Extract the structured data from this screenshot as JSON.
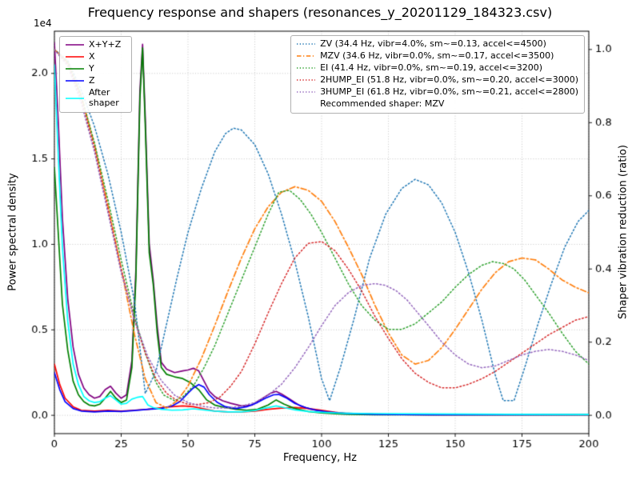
{
  "chart_data": {
    "type": "line",
    "title": "Frequency response and shapers (resonances_y_20201129_184323.csv)",
    "xlabel": "Frequency, Hz",
    "ylabel_left": "Power spectral density",
    "ylabel_right": "Shaper vibration reduction (ratio)",
    "offset_text": "1e4",
    "psd_values_scale": "1e4",
    "xlim": [
      0,
      200
    ],
    "ylim_left": [
      -0.107,
      2.247
    ],
    "ylim_right": [
      -0.05,
      1.05
    ],
    "xticks": [
      0,
      25,
      50,
      75,
      100,
      125,
      150,
      175,
      200
    ],
    "yticks_left": [
      "0.0",
      "0.5",
      "1.0",
      "1.5",
      "2.0"
    ],
    "yticks_right": [
      "0.0",
      "0.2",
      "0.4",
      "0.6",
      "0.8",
      "1.0"
    ],
    "grid": true,
    "grid_color": "#b8b8b8",
    "psd_series": [
      {
        "name": "X+Y+Z",
        "color": "#800080",
        "style": "solid",
        "axis": "left",
        "x": [
          0,
          1.5,
          3,
          5,
          7,
          9,
          11,
          13,
          15,
          17,
          19,
          21,
          23,
          25,
          27,
          29,
          30.5,
          32,
          33,
          34,
          35.5,
          37,
          38.5,
          40,
          42,
          45,
          48,
          50,
          52,
          54,
          56,
          58,
          60,
          63,
          66,
          70,
          74,
          78,
          81,
          83,
          85,
          88,
          92,
          96,
          100,
          104,
          108,
          114,
          120,
          130,
          145,
          165,
          185,
          200
        ],
        "y": [
          2.18,
          1.7,
          1.15,
          0.68,
          0.4,
          0.24,
          0.16,
          0.12,
          0.1,
          0.11,
          0.15,
          0.17,
          0.13,
          0.1,
          0.12,
          0.32,
          0.85,
          1.9,
          2.17,
          1.75,
          1.0,
          0.79,
          0.52,
          0.31,
          0.27,
          0.25,
          0.26,
          0.265,
          0.275,
          0.26,
          0.2,
          0.14,
          0.11,
          0.085,
          0.07,
          0.055,
          0.06,
          0.1,
          0.13,
          0.14,
          0.125,
          0.095,
          0.055,
          0.035,
          0.025,
          0.018,
          0.013,
          0.009,
          0.007,
          0.005,
          0.004,
          0.004,
          0.004,
          0.004
        ]
      },
      {
        "name": "X",
        "color": "#ff0000",
        "style": "solid",
        "axis": "left",
        "x": [
          0,
          2,
          4,
          7,
          10,
          15,
          20,
          25,
          30,
          35,
          40,
          44,
          48,
          52,
          56,
          60,
          65,
          70,
          75,
          80,
          85,
          90,
          95,
          100,
          105,
          110,
          120,
          140,
          170,
          200
        ],
        "y": [
          0.3,
          0.18,
          0.1,
          0.05,
          0.03,
          0.025,
          0.03,
          0.025,
          0.03,
          0.035,
          0.045,
          0.05,
          0.055,
          0.05,
          0.038,
          0.025,
          0.02,
          0.02,
          0.025,
          0.035,
          0.042,
          0.046,
          0.04,
          0.03,
          0.018,
          0.01,
          0.006,
          0.004,
          0.003,
          0.003
        ]
      },
      {
        "name": "Y",
        "color": "#008000",
        "style": "solid",
        "axis": "left",
        "x": [
          0,
          1.5,
          3,
          5,
          7,
          9,
          11,
          13,
          15,
          17,
          19,
          21,
          23,
          25,
          27,
          29,
          30.5,
          32,
          33,
          34,
          35.5,
          37,
          38.5,
          40,
          42,
          45,
          48,
          51,
          54,
          57,
          60,
          64,
          68,
          72,
          76,
          80,
          83,
          86,
          90,
          95,
          100,
          105,
          110,
          120,
          140,
          170,
          200
        ],
        "y": [
          1.45,
          1.05,
          0.65,
          0.38,
          0.2,
          0.12,
          0.08,
          0.06,
          0.055,
          0.065,
          0.1,
          0.14,
          0.1,
          0.075,
          0.09,
          0.28,
          0.8,
          1.85,
          2.15,
          1.7,
          0.95,
          0.765,
          0.48,
          0.28,
          0.24,
          0.225,
          0.215,
          0.19,
          0.15,
          0.09,
          0.06,
          0.045,
          0.035,
          0.03,
          0.035,
          0.06,
          0.09,
          0.065,
          0.04,
          0.022,
          0.014,
          0.009,
          0.006,
          0.004,
          0.003,
          0.003,
          0.003
        ]
      },
      {
        "name": "Z",
        "color": "#0000ff",
        "style": "solid",
        "axis": "left",
        "x": [
          0,
          2,
          4,
          7,
          10,
          15,
          20,
          25,
          30,
          35,
          40,
          44,
          47,
          50,
          52,
          54,
          56,
          58,
          61,
          64,
          68,
          72,
          76,
          79,
          82,
          84,
          87,
          90,
          94,
          98,
          102,
          106,
          110,
          120,
          140,
          170,
          200
        ],
        "y": [
          0.25,
          0.15,
          0.08,
          0.04,
          0.025,
          0.02,
          0.025,
          0.022,
          0.028,
          0.035,
          0.04,
          0.055,
          0.08,
          0.13,
          0.16,
          0.18,
          0.165,
          0.12,
          0.075,
          0.05,
          0.04,
          0.05,
          0.075,
          0.1,
          0.12,
          0.122,
          0.1,
          0.07,
          0.045,
          0.03,
          0.02,
          0.014,
          0.01,
          0.006,
          0.004,
          0.003,
          0.003
        ]
      }
    ],
    "after_shaper": {
      "name": "After shaper",
      "color": "#00ffff",
      "style": "solid",
      "axis": "left",
      "x": [
        0,
        1.5,
        3,
        5,
        7,
        9,
        11,
        13,
        15,
        17,
        19,
        21,
        23,
        25,
        27,
        29,
        31,
        33,
        35,
        37,
        40,
        44,
        48,
        52,
        56,
        60,
        65,
        70,
        75,
        79,
        83,
        86,
        90,
        95,
        100,
        105,
        110,
        120,
        140,
        170,
        200
      ],
      "y": [
        2.05,
        1.5,
        0.98,
        0.55,
        0.3,
        0.18,
        0.11,
        0.085,
        0.075,
        0.08,
        0.1,
        0.115,
        0.09,
        0.065,
        0.07,
        0.095,
        0.105,
        0.11,
        0.06,
        0.045,
        0.035,
        0.03,
        0.032,
        0.038,
        0.032,
        0.025,
        0.02,
        0.02,
        0.028,
        0.042,
        0.055,
        0.045,
        0.032,
        0.022,
        0.018,
        0.014,
        0.012,
        0.01,
        0.008,
        0.006,
        0.005
      ]
    },
    "shaper_series": [
      {
        "name": "ZV",
        "color": "#1f77b4",
        "style": "dotted",
        "axis": "right",
        "x": [
          0,
          5,
          10,
          15,
          20,
          25,
          30,
          34,
          38,
          42,
          46,
          50,
          55,
          60,
          64,
          67,
          70,
          75,
          80,
          85,
          90,
          95,
          100,
          103,
          107,
          112,
          118,
          124,
          130,
          135,
          140,
          145,
          150,
          155,
          160,
          165,
          168,
          172,
          176,
          181,
          186,
          191,
          196,
          200
        ],
        "y": [
          1.0,
          0.97,
          0.89,
          0.79,
          0.66,
          0.5,
          0.31,
          0.06,
          0.12,
          0.25,
          0.38,
          0.5,
          0.62,
          0.72,
          0.77,
          0.785,
          0.78,
          0.74,
          0.66,
          0.55,
          0.42,
          0.27,
          0.1,
          0.04,
          0.13,
          0.26,
          0.43,
          0.55,
          0.62,
          0.645,
          0.63,
          0.58,
          0.5,
          0.39,
          0.26,
          0.11,
          0.04,
          0.04,
          0.13,
          0.25,
          0.36,
          0.46,
          0.53,
          0.56
        ]
      },
      {
        "name": "MZV",
        "color": "#ff7f0e",
        "style": "dashdot",
        "axis": "right",
        "x": [
          0,
          5,
          10,
          15,
          20,
          25,
          30,
          34,
          38,
          42,
          46,
          50,
          55,
          60,
          65,
          70,
          75,
          80,
          85,
          90,
          95,
          100,
          105,
          110,
          115,
          120,
          125,
          130,
          135,
          140,
          145,
          150,
          155,
          160,
          165,
          170,
          175,
          180,
          185,
          190,
          195,
          200
        ],
        "y": [
          1.0,
          0.965,
          0.875,
          0.74,
          0.575,
          0.4,
          0.22,
          0.1,
          0.035,
          0.02,
          0.04,
          0.08,
          0.155,
          0.245,
          0.34,
          0.43,
          0.51,
          0.57,
          0.61,
          0.625,
          0.615,
          0.585,
          0.53,
          0.46,
          0.385,
          0.3,
          0.225,
          0.165,
          0.14,
          0.15,
          0.185,
          0.235,
          0.29,
          0.345,
          0.39,
          0.42,
          0.43,
          0.425,
          0.4,
          0.37,
          0.35,
          0.335
        ]
      },
      {
        "name": "EI",
        "color": "#2ca02c",
        "style": "dotted",
        "axis": "right",
        "x": [
          0,
          5,
          10,
          15,
          20,
          25,
          30,
          34,
          38,
          41,
          45,
          48,
          52,
          56,
          60,
          65,
          70,
          75,
          80,
          84,
          88,
          92,
          96,
          100,
          105,
          110,
          115,
          120,
          125,
          130,
          135,
          140,
          145,
          150,
          155,
          160,
          164,
          168,
          172,
          176,
          180,
          185,
          190,
          195,
          200
        ],
        "y": [
          1.0,
          0.965,
          0.875,
          0.745,
          0.59,
          0.425,
          0.27,
          0.17,
          0.09,
          0.055,
          0.04,
          0.05,
          0.08,
          0.13,
          0.19,
          0.28,
          0.37,
          0.46,
          0.55,
          0.61,
          0.615,
          0.59,
          0.55,
          0.5,
          0.43,
          0.36,
          0.3,
          0.26,
          0.235,
          0.235,
          0.25,
          0.28,
          0.31,
          0.35,
          0.385,
          0.41,
          0.42,
          0.415,
          0.4,
          0.37,
          0.33,
          0.28,
          0.225,
          0.175,
          0.14
        ]
      },
      {
        "name": "2HUMP_EI",
        "color": "#d62728",
        "style": "dotted",
        "axis": "right",
        "x": [
          0,
          5,
          10,
          15,
          20,
          25,
          30,
          34,
          38,
          42,
          46,
          50,
          54,
          58,
          62,
          66,
          70,
          75,
          80,
          85,
          90,
          95,
          100,
          105,
          110,
          115,
          120,
          125,
          130,
          135,
          140,
          145,
          150,
          155,
          160,
          165,
          170,
          175,
          180,
          185,
          190,
          195,
          200
        ],
        "y": [
          1.0,
          0.96,
          0.865,
          0.73,
          0.565,
          0.4,
          0.26,
          0.17,
          0.1,
          0.06,
          0.04,
          0.03,
          0.03,
          0.035,
          0.05,
          0.08,
          0.12,
          0.195,
          0.28,
          0.36,
          0.43,
          0.47,
          0.475,
          0.45,
          0.4,
          0.34,
          0.27,
          0.21,
          0.155,
          0.115,
          0.09,
          0.075,
          0.075,
          0.085,
          0.1,
          0.12,
          0.145,
          0.17,
          0.195,
          0.22,
          0.24,
          0.26,
          0.27
        ]
      },
      {
        "name": "3HUMP_EI",
        "color": "#9467bd",
        "style": "dotted",
        "axis": "right",
        "x": [
          0,
          5,
          10,
          15,
          20,
          25,
          30,
          35,
          40,
          45,
          50,
          55,
          60,
          65,
          70,
          75,
          80,
          85,
          90,
          95,
          100,
          105,
          110,
          115,
          120,
          124,
          128,
          132,
          136,
          140,
          145,
          150,
          155,
          160,
          165,
          170,
          175,
          180,
          185,
          190,
          195,
          200
        ],
        "y": [
          1.0,
          0.955,
          0.855,
          0.72,
          0.555,
          0.39,
          0.26,
          0.16,
          0.095,
          0.055,
          0.035,
          0.025,
          0.02,
          0.02,
          0.025,
          0.035,
          0.055,
          0.085,
          0.13,
          0.185,
          0.245,
          0.3,
          0.335,
          0.355,
          0.36,
          0.355,
          0.34,
          0.315,
          0.28,
          0.245,
          0.2,
          0.165,
          0.14,
          0.13,
          0.135,
          0.15,
          0.165,
          0.175,
          0.18,
          0.175,
          0.165,
          0.15
        ]
      }
    ],
    "legend_psd": {
      "items": [
        {
          "label": "X+Y+Z",
          "color": "#800080",
          "style": "solid"
        },
        {
          "label": "X",
          "color": "#ff0000",
          "style": "solid"
        },
        {
          "label": "Y",
          "color": "#008000",
          "style": "solid"
        },
        {
          "label": "Z",
          "color": "#0000ff",
          "style": "solid"
        },
        {
          "label": "After shaper",
          "color": "#00ffff",
          "style": "solid"
        }
      ]
    },
    "legend_shapers": {
      "items": [
        {
          "label": "ZV (34.4 Hz, vibr=4.0%, sm~=0.13, accel<=4500)",
          "color": "#1f77b4",
          "style": "dotted"
        },
        {
          "label": "MZV (34.6 Hz, vibr=0.0%, sm~=0.17, accel<=3500)",
          "color": "#ff7f0e",
          "style": "dashdot"
        },
        {
          "label": "EI (41.4 Hz, vibr=0.0%, sm~=0.19, accel<=3200)",
          "color": "#2ca02c",
          "style": "dotted"
        },
        {
          "label": "2HUMP_EI (51.8 Hz, vibr=0.0%, sm~=0.20, accel<=3000)",
          "color": "#d62728",
          "style": "dotted"
        },
        {
          "label": "3HUMP_EI (61.8 Hz, vibr=0.0%, sm~=0.21, accel<=2800)",
          "color": "#9467bd",
          "style": "dotted"
        }
      ],
      "note": "Recommended shaper: MZV",
      "recommended": "MZV"
    }
  }
}
